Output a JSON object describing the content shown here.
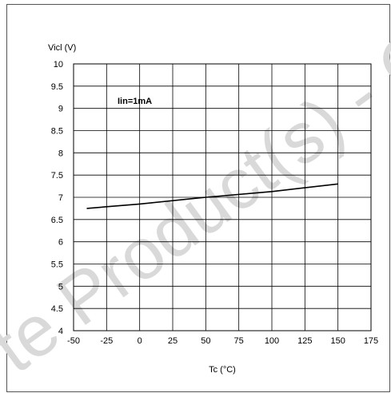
{
  "watermark": "te Product(s) - O",
  "chart_data": {
    "type": "line",
    "title": "",
    "ylabel": "Vicl (V)",
    "xlabel": "Tc (°C)",
    "annotation": "Iin=1mA",
    "xlim": [
      -50,
      175
    ],
    "ylim": [
      4,
      10
    ],
    "x_ticks": [
      "-50",
      "-25",
      "0",
      "25",
      "50",
      "75",
      "100",
      "125",
      "150",
      "175"
    ],
    "y_ticks": [
      "10",
      "9.5",
      "9",
      "8.5",
      "8",
      "7.5",
      "7",
      "6.5",
      "6",
      "5.5",
      "5",
      "4.5",
      "4"
    ],
    "grid": true,
    "series": [
      {
        "x": [
          -40,
          0,
          50,
          100,
          150
        ],
        "y": [
          6.75,
          6.85,
          7.0,
          7.13,
          7.3
        ],
        "color": "#000000"
      }
    ]
  }
}
